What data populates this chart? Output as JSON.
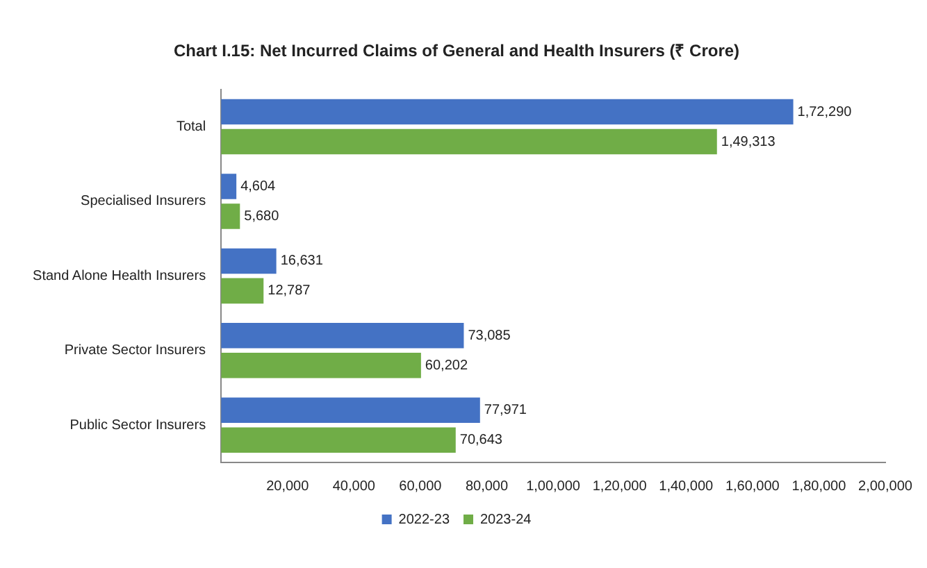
{
  "chart_data": {
    "type": "bar",
    "orientation": "horizontal",
    "title": "Chart I.15: Net Incurred Claims of General and Health Insurers (₹ Crore)",
    "categories": [
      "Total",
      "Specialised Insurers",
      "Stand Alone Health Insurers",
      "Private Sector Insurers",
      "Public Sector Insurers"
    ],
    "series": [
      {
        "name": "2022-23",
        "color": "#4472c4",
        "values": [
          172290,
          4604,
          16631,
          73085,
          77971
        ],
        "value_labels": [
          "1,72,290",
          "4,604",
          "16,631",
          "73,085",
          "77,971"
        ]
      },
      {
        "name": "2023-24",
        "color": "#70ad47",
        "values": [
          149313,
          5680,
          12787,
          60202,
          70643
        ],
        "value_labels": [
          "1,49,313",
          "5,680",
          "12,787",
          "60,202",
          "70,643"
        ]
      }
    ],
    "xlim": [
      0,
      200000
    ],
    "xticks": [
      {
        "value": 0,
        "label": null
      },
      {
        "value": 20000,
        "label": "20,000"
      },
      {
        "value": 40000,
        "label": "40,000"
      },
      {
        "value": 60000,
        "label": "60,000"
      },
      {
        "value": 80000,
        "label": "80,000"
      },
      {
        "value": 100000,
        "label": "1,00,000"
      },
      {
        "value": 120000,
        "label": "1,20,000"
      },
      {
        "value": 140000,
        "label": "1,40,000"
      },
      {
        "value": 160000,
        "label": "1,60,000"
      },
      {
        "value": 180000,
        "label": "1,80,000"
      },
      {
        "value": 200000,
        "label": "2,00,000"
      }
    ],
    "grid": false,
    "legend": "bottom"
  }
}
